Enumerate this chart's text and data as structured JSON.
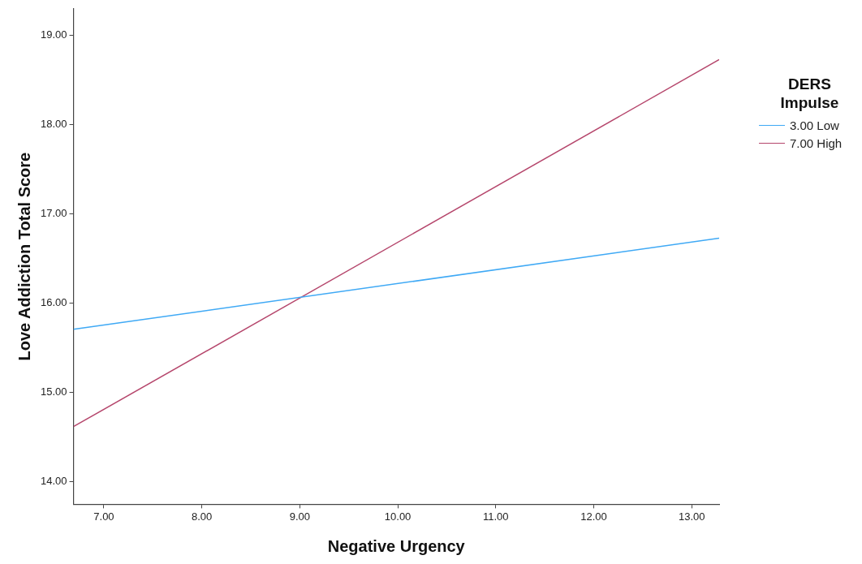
{
  "chart_data": {
    "type": "line",
    "xlabel": "Negative Urgency",
    "ylabel": "Love Addiction Total Score",
    "legend_title": "DERS Impulse",
    "legend": "top right",
    "grid": false,
    "marker": "none",
    "line_style": "solid",
    "x": [
      6.69,
      13.28
    ],
    "series": [
      {
        "name": "3.00 Low",
        "color": "#3fa9f5",
        "values": [
          15.71,
          16.73
        ]
      },
      {
        "name": "7.00 High",
        "color": "#b5456b",
        "values": [
          14.62,
          18.73
        ]
      }
    ],
    "xlim": [
      6.69,
      13.28
    ],
    "ylim": [
      13.75,
      19.3
    ],
    "xticks": [
      {
        "value": 7,
        "label": "7.00"
      },
      {
        "value": 8,
        "label": "8.00"
      },
      {
        "value": 9,
        "label": "9.00"
      },
      {
        "value": 10,
        "label": "10.00"
      },
      {
        "value": 11,
        "label": "11.00"
      },
      {
        "value": 12,
        "label": "12.00"
      },
      {
        "value": 13,
        "label": "13.00"
      }
    ],
    "yticks": [
      {
        "value": 14,
        "label": "14.00"
      },
      {
        "value": 15,
        "label": "15.00"
      },
      {
        "value": 16,
        "label": "16.00"
      },
      {
        "value": 17,
        "label": "17.00"
      },
      {
        "value": 18,
        "label": "18.00"
      },
      {
        "value": 19,
        "label": "19.00"
      }
    ]
  }
}
